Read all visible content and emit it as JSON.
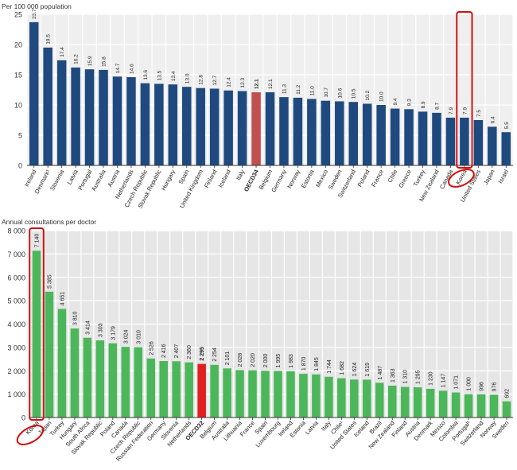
{
  "chart_data": [
    {
      "type": "bar",
      "title": "",
      "ylabel": "Per 100 000 population",
      "xlabel": "",
      "ylim": [
        0,
        25
      ],
      "yticks": [
        0,
        5,
        10,
        15,
        20,
        25
      ],
      "grid": true,
      "categories": [
        "Ireland",
        "Denmark¹",
        "Slovenia",
        "Latvia",
        "Portugal",
        "Australia",
        "Austria",
        "Netherlands",
        "Czech Republic",
        "Slovak Republic",
        "Hungary",
        "Spain",
        "United Kingdom",
        "Finland",
        "Iceland",
        "Italy",
        "OECD34",
        "Belgium",
        "Germany",
        "Norway",
        "Estonia",
        "Mexico",
        "Sweden",
        "Switzerland",
        "Poland",
        "France",
        "Chile",
        "Greece",
        "Turkey",
        "New Zealand",
        "Canada",
        "Korea",
        "United States",
        "Japan",
        "Israel"
      ],
      "values": [
        23.7,
        19.5,
        17.4,
        16.2,
        15.9,
        15.8,
        14.7,
        14.6,
        13.6,
        13.5,
        13.4,
        13.0,
        12.8,
        12.7,
        12.4,
        12.3,
        12.1,
        12.1,
        11.3,
        11.2,
        11.0,
        10.7,
        10.6,
        10.5,
        10.2,
        10.0,
        9.4,
        9.3,
        8.9,
        8.7,
        7.9,
        7.9,
        7.5,
        6.4,
        5.5
      ],
      "value_labels": [
        "23.7",
        "19.5",
        "17.4",
        "16.2",
        "15.9",
        "15.8",
        "14.7",
        "14.6",
        "13.6",
        "13.5",
        "13.4",
        "13.0",
        "12.8",
        "12.7",
        "12.4",
        "12.3",
        "12.1",
        "12.1",
        "11.3",
        "11.2",
        "11.0",
        "10.7",
        "10.6",
        "10.5",
        "10.2",
        "10.0",
        "9.4",
        "9.3",
        "8.9",
        "8.7",
        "7.9",
        "7.9",
        "7.5",
        "6.4",
        "5.5"
      ],
      "highlight_category": "OECD34",
      "annotated_category": "Korea",
      "colors": {
        "bar": "#1f4a7f",
        "highlight": "#c0504d",
        "annotation": "#d01010",
        "plot_bg": "#efefef"
      }
    },
    {
      "type": "bar",
      "title": "",
      "ylabel": "Annual consultations per doctor",
      "xlabel": "",
      "ylim": [
        0,
        8000
      ],
      "yticks": [
        0,
        1000,
        2000,
        3000,
        4000,
        5000,
        6000,
        7000,
        8000
      ],
      "ytick_labels": [
        "0",
        "1 000",
        "2 000",
        "3 000",
        "4 000",
        "5 000",
        "6 000",
        "7 000",
        "8 000"
      ],
      "grid": true,
      "categories": [
        "Korea",
        "Japan",
        "Turkey",
        "Hungary",
        "South Africa",
        "Slovak Republic",
        "Poland",
        "Canada",
        "Czech Republic",
        "Russian Federation",
        "Germany",
        "Slovenia",
        "Netherlands",
        "OECD32",
        "Belgium",
        "Australia",
        "Lithuania",
        "France",
        "Spain",
        "Luxembourg",
        "Ireland",
        "Estonia",
        "Latvia",
        "Italy",
        "Chile¹",
        "United States",
        "Iceland",
        "Brazil",
        "New Zealand",
        "Finland",
        "Austria",
        "Denmark",
        "Mexico",
        "Colombia",
        "Portugal¹",
        "Switzerland",
        "Norway",
        "Sweden"
      ],
      "values": [
        7140,
        5385,
        4651,
        3810,
        3414,
        3303,
        3179,
        3024,
        3010,
        2526,
        2416,
        2407,
        2360,
        2295,
        2254,
        2101,
        2028,
        2020,
        2000,
        1995,
        1983,
        1870,
        1845,
        1744,
        1682,
        1624,
        1619,
        1487,
        1363,
        1310,
        1295,
        1230,
        1147,
        1071,
        1000,
        996,
        976,
        692
      ],
      "value_labels": [
        "7 140",
        "5 385",
        "4 651",
        "3 810",
        "3 414",
        "3 303",
        "3 179",
        "3 024",
        "3 010",
        "2 526",
        "2 416",
        "2 407",
        "2 360",
        "2 295",
        "2 254",
        "2 101",
        "2 028",
        "2 020",
        "2 000",
        "1 995",
        "1 983",
        "1 870",
        "1 845",
        "1 744",
        "1 682",
        "1 624",
        "1 619",
        "1 487",
        "1 363",
        "1 310",
        "1 295",
        "1 230",
        "1 147",
        "1 071",
        "1 000",
        "996",
        "976",
        "692"
      ],
      "highlight_category": "OECD32",
      "annotated_category": "Korea",
      "colors": {
        "bar": "#4cb75a",
        "highlight": "#e02020",
        "annotation": "#d01010",
        "plot_bg": "#e6e6e6"
      }
    }
  ]
}
